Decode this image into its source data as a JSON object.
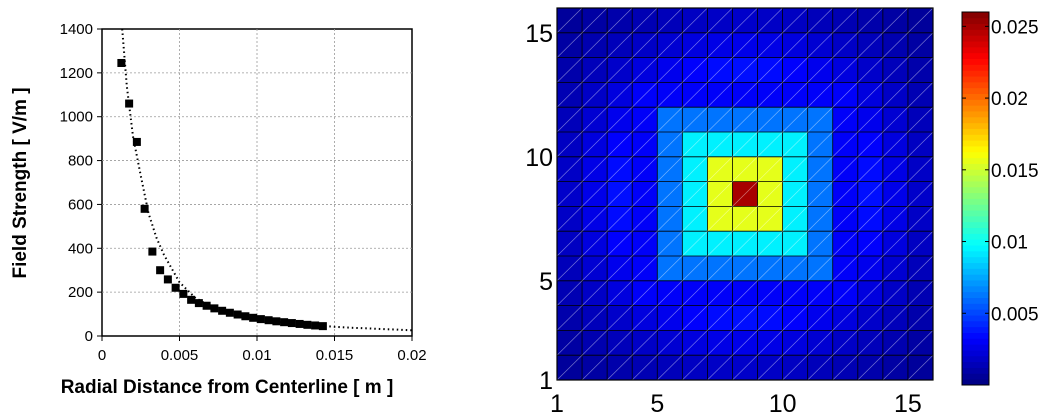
{
  "chart_data": [
    {
      "type": "scatter",
      "title": "",
      "xlabel": "Radial Distance from Centerline [ m ]",
      "ylabel": "Field Strength [ V/m ]",
      "xlim": [
        0,
        0.02
      ],
      "ylim": [
        0,
        1400
      ],
      "xticks": [
        0,
        0.005,
        0.01,
        0.015,
        0.02
      ],
      "xtick_labels": [
        "0",
        "0.005",
        "0.01",
        "0.015",
        "0.02"
      ],
      "yticks": [
        0,
        200,
        400,
        600,
        800,
        1000,
        1200,
        1400
      ],
      "ytick_labels": [
        "0",
        "200",
        "400",
        "600",
        "800",
        "1000",
        "1200",
        "1400"
      ],
      "grid": true,
      "marker": "square",
      "series": [
        {
          "x": [
            0.00125,
            0.00175,
            0.00225,
            0.00275,
            0.00325,
            0.00375,
            0.00425,
            0.00475,
            0.00525,
            0.00575,
            0.00625,
            0.00675,
            0.00725,
            0.00775,
            0.00825,
            0.00875,
            0.00925,
            0.00975,
            0.01025,
            0.01075,
            0.01125,
            0.01175,
            0.01225,
            0.01275,
            0.01325,
            0.01375,
            0.01425
          ],
          "y": [
            1245,
            1060,
            885,
            580,
            385,
            300,
            258,
            220,
            192,
            165,
            150,
            138,
            126,
            115,
            106,
            98,
            90,
            83,
            77,
            72,
            67,
            63,
            59,
            55,
            51,
            48,
            45
          ]
        }
      ],
      "fit": {
        "style": "dotted",
        "x": [
          0.0013,
          0.0016,
          0.002,
          0.0025,
          0.003,
          0.0035,
          0.004,
          0.005,
          0.006,
          0.007,
          0.008,
          0.009,
          0.01,
          0.011,
          0.012,
          0.013,
          0.014,
          0.015,
          0.016,
          0.017,
          0.018,
          0.019,
          0.02
        ],
        "y": [
          1400,
          1140,
          910,
          730,
          560,
          450,
          370,
          245,
          175,
          135,
          108,
          90,
          77,
          67,
          59,
          52,
          47,
          42,
          38,
          35,
          32,
          29,
          26
        ]
      }
    },
    {
      "type": "heatmap",
      "title": "",
      "xlabel": "",
      "ylabel": "",
      "xlim": [
        1,
        16
      ],
      "ylim": [
        1,
        16
      ],
      "xtick_labels": [
        "1",
        "5",
        "10",
        "15"
      ],
      "ytick_labels": [
        "1",
        "5",
        "10",
        "15"
      ],
      "colormap": "jet",
      "clim": [
        0,
        0.026
      ],
      "colorbar_ticks": [
        0.005,
        0.01,
        0.015,
        0.02,
        0.025
      ],
      "colorbar_labels": [
        "0.005",
        "0.01",
        "0.015",
        "0.02",
        "0.025"
      ],
      "rows_top_to_bottom": [
        [
          0.0007,
          0.0009,
          0.0011,
          0.0013,
          0.0015,
          0.0017,
          0.0018,
          0.0019,
          0.0018,
          0.0017,
          0.0015,
          0.0013,
          0.0011,
          0.0009,
          0.0007
        ],
        [
          0.0009,
          0.0012,
          0.0015,
          0.0018,
          0.0021,
          0.0024,
          0.0026,
          0.0027,
          0.0026,
          0.0024,
          0.0021,
          0.0018,
          0.0015,
          0.0012,
          0.0009
        ],
        [
          0.0011,
          0.0015,
          0.0019,
          0.0024,
          0.0028,
          0.0032,
          0.0035,
          0.0036,
          0.0035,
          0.0032,
          0.0028,
          0.0024,
          0.0019,
          0.0015,
          0.0011
        ],
        [
          0.0013,
          0.0018,
          0.0024,
          0.0031,
          0.0031,
          0.0031,
          0.0031,
          0.0031,
          0.0031,
          0.0031,
          0.0031,
          0.0031,
          0.0024,
          0.0018,
          0.0013
        ],
        [
          0.0015,
          0.0021,
          0.0028,
          0.0031,
          0.0062,
          0.0062,
          0.0062,
          0.0062,
          0.0062,
          0.0062,
          0.0062,
          0.0031,
          0.0028,
          0.0021,
          0.0015
        ],
        [
          0.0017,
          0.0024,
          0.0032,
          0.0031,
          0.0062,
          0.0094,
          0.0094,
          0.0094,
          0.0094,
          0.0094,
          0.0062,
          0.0031,
          0.0032,
          0.0024,
          0.0017
        ],
        [
          0.0018,
          0.0026,
          0.0035,
          0.0031,
          0.0062,
          0.0094,
          0.0156,
          0.0156,
          0.0156,
          0.0094,
          0.0062,
          0.0031,
          0.0035,
          0.0026,
          0.0018
        ],
        [
          0.0019,
          0.0027,
          0.0036,
          0.0031,
          0.0062,
          0.0094,
          0.0156,
          0.025,
          0.0156,
          0.0094,
          0.0062,
          0.0031,
          0.0036,
          0.0027,
          0.0019
        ],
        [
          0.0018,
          0.0026,
          0.0035,
          0.0031,
          0.0062,
          0.0094,
          0.0156,
          0.0156,
          0.0156,
          0.0094,
          0.0062,
          0.0031,
          0.0035,
          0.0026,
          0.0018
        ],
        [
          0.0017,
          0.0024,
          0.0032,
          0.0031,
          0.0062,
          0.0094,
          0.0094,
          0.0094,
          0.0094,
          0.0094,
          0.0062,
          0.0031,
          0.0032,
          0.0024,
          0.0017
        ],
        [
          0.0015,
          0.0021,
          0.0028,
          0.0031,
          0.0062,
          0.0062,
          0.0062,
          0.0062,
          0.0062,
          0.0062,
          0.0062,
          0.0031,
          0.0028,
          0.0021,
          0.0015
        ],
        [
          0.0013,
          0.0018,
          0.0024,
          0.0031,
          0.0031,
          0.0031,
          0.0031,
          0.0031,
          0.0031,
          0.0031,
          0.0031,
          0.0031,
          0.0024,
          0.0018,
          0.0013
        ],
        [
          0.0011,
          0.0015,
          0.0019,
          0.0024,
          0.0028,
          0.0032,
          0.0035,
          0.0036,
          0.0035,
          0.0032,
          0.0028,
          0.0024,
          0.0019,
          0.0015,
          0.0011
        ],
        [
          0.0009,
          0.0012,
          0.0015,
          0.0018,
          0.0021,
          0.0024,
          0.0026,
          0.0027,
          0.0026,
          0.0024,
          0.0021,
          0.0018,
          0.0015,
          0.0012,
          0.0009
        ],
        [
          0.0007,
          0.0009,
          0.0011,
          0.0013,
          0.0015,
          0.0017,
          0.0018,
          0.0019,
          0.0018,
          0.0017,
          0.0015,
          0.0013,
          0.0011,
          0.0009,
          0.0007
        ]
      ]
    }
  ]
}
